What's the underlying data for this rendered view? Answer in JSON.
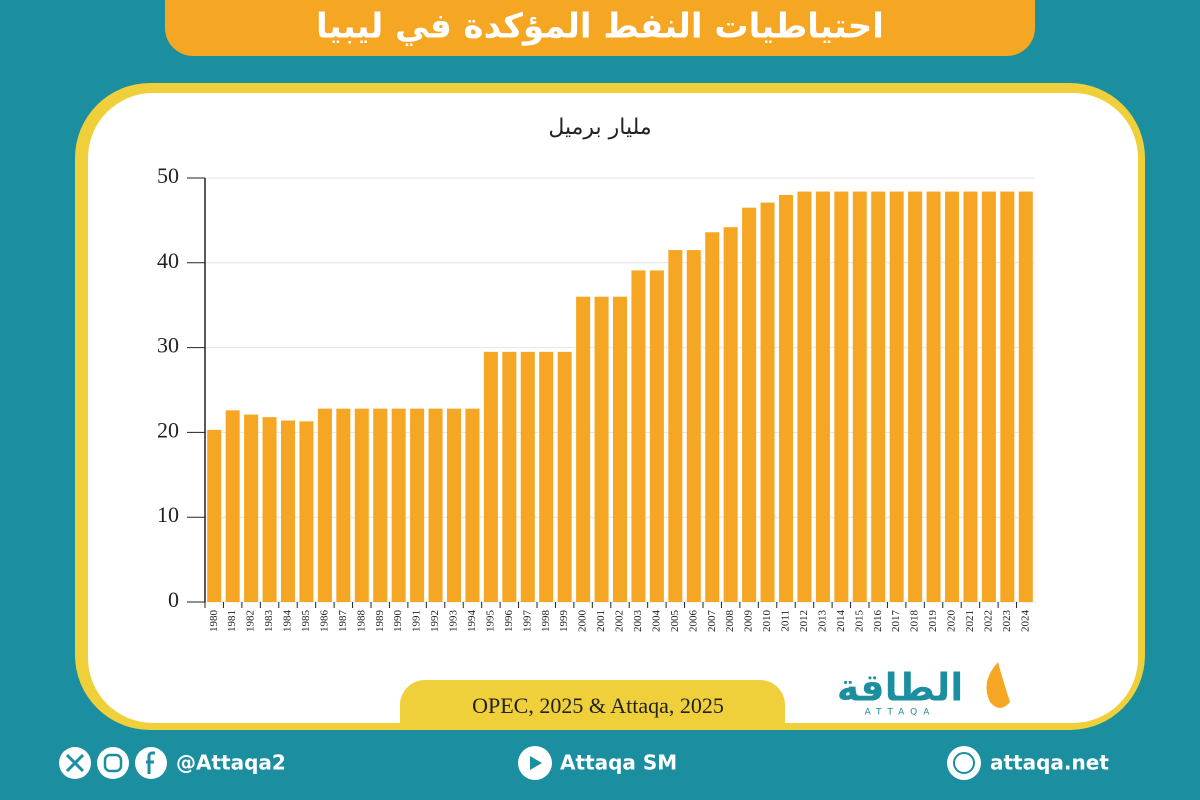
{
  "chart_data": {
    "type": "bar",
    "title": "احتياطيات النفط المؤكدة في ليبيا",
    "y_label": "مليار برميل",
    "source": "OPEC, 2025 & Attaqa, 2025",
    "categories": [
      "1980",
      "1981",
      "1982",
      "1983",
      "1984",
      "1985",
      "1986",
      "1987",
      "1988",
      "1989",
      "1990",
      "1991",
      "1992",
      "1993",
      "1994",
      "1995",
      "1996",
      "1997",
      "1998",
      "1999",
      "2000",
      "2001",
      "2002",
      "2003",
      "2004",
      "2005",
      "2006",
      "2007",
      "2008",
      "2009",
      "2010",
      "2011",
      "2012",
      "2013",
      "2014",
      "2015",
      "2016",
      "2017",
      "2018",
      "2019",
      "2020",
      "2021",
      "2022",
      "2023",
      "2024"
    ],
    "values": [
      20.3,
      22.6,
      22.1,
      21.8,
      21.4,
      21.3,
      22.8,
      22.8,
      22.8,
      22.8,
      22.8,
      22.8,
      22.8,
      22.8,
      22.8,
      29.5,
      29.5,
      29.5,
      29.5,
      29.5,
      36.0,
      36.0,
      36.0,
      39.1,
      39.1,
      41.5,
      41.5,
      43.6,
      44.2,
      46.5,
      47.1,
      48.0,
      48.4,
      48.4,
      48.4,
      48.4,
      48.4,
      48.4,
      48.4,
      48.4,
      48.4,
      48.4,
      48.4,
      48.4,
      48.4
    ],
    "color": "#f5a623",
    "ylim": [
      0,
      50
    ],
    "yticks": [
      0,
      10,
      20,
      30,
      40,
      50
    ],
    "grid": true
  },
  "logo": {
    "name": "الطاقة",
    "latin": "ATTAQA"
  },
  "footer": {
    "social": "@Attaqa2",
    "youtube": "Attaqa SM",
    "website": "attaqa.net"
  }
}
